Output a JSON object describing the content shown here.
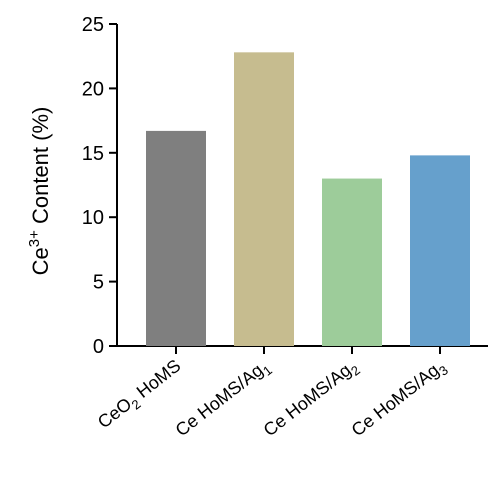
{
  "chart_data": {
    "type": "bar",
    "title": "",
    "xlabel": "",
    "ylabel": {
      "base": "Ce",
      "sup": "3+",
      "rest": " Content (%)"
    },
    "ylim": [
      0,
      25
    ],
    "yticks": [
      0,
      5,
      10,
      15,
      20,
      25
    ],
    "grid": false,
    "categories": [
      {
        "base": "CeO",
        "sub": "2",
        "rest": " HoMS"
      },
      {
        "base": "Ce HoMS/Ag",
        "sub": "1",
        "rest": ""
      },
      {
        "base": "Ce HoMS/Ag",
        "sub": "2",
        "rest": ""
      },
      {
        "base": "Ce HoMS/Ag",
        "sub": "3",
        "rest": ""
      }
    ],
    "values": [
      16.7,
      22.8,
      13.0,
      14.8
    ],
    "colors": [
      "#7f7f7f",
      "#c6bc8f",
      "#9dcc9a",
      "#66a0cc"
    ]
  }
}
